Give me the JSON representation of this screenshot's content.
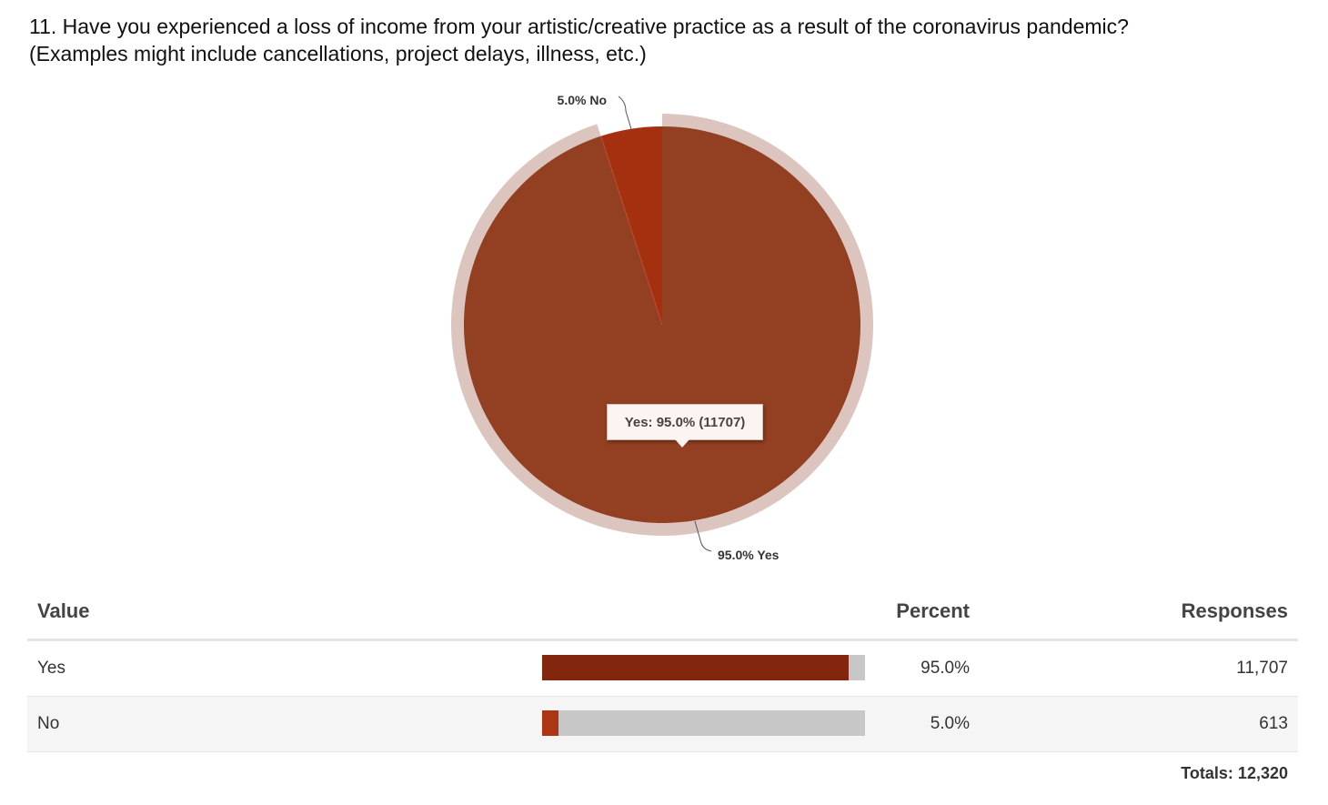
{
  "question": {
    "line1": "11. Have you experienced a loss of income from your artistic/creative practice as a result of the coronavirus pandemic?",
    "line2": "(Examples might include cancellations, project delays, illness, etc.)"
  },
  "chart_data": {
    "type": "pie",
    "slices": [
      {
        "label": "Yes",
        "percent": 95.0,
        "count": 11707,
        "color": "#933f22",
        "callout": "95.0% Yes"
      },
      {
        "label": "No",
        "percent": 5.0,
        "count": 613,
        "color": "#a5300f",
        "callout": "5.0% No"
      }
    ],
    "ring_color": "#dcc5bf",
    "highlighted": "Yes",
    "tooltip": "Yes: 95.0% (11707)"
  },
  "table": {
    "headers": {
      "value": "Value",
      "percent": "Percent",
      "responses": "Responses"
    },
    "rows": [
      {
        "value": "Yes",
        "percent_text": "95.0%",
        "responses": "11,707",
        "fraction": 0.95,
        "bar_color": "#82260e"
      },
      {
        "value": "No",
        "percent_text": "5.0%",
        "responses": "613",
        "fraction": 0.05,
        "bar_color": "#ad3414"
      }
    ],
    "totals": "Totals: 12,320"
  }
}
